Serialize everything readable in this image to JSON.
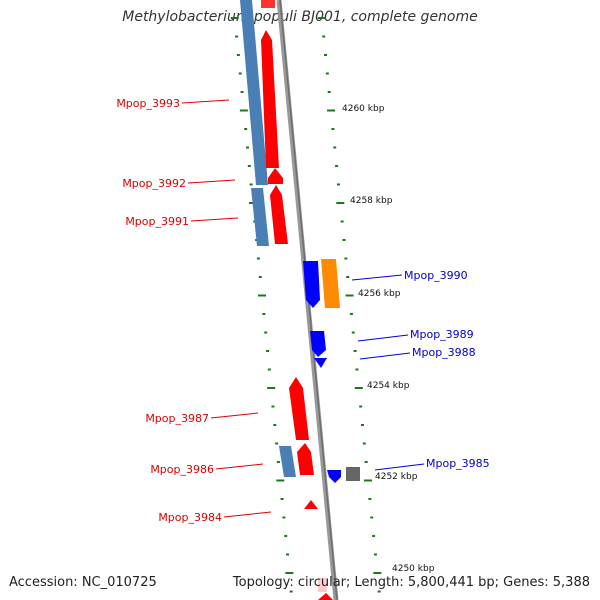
{
  "title": "Methylobacterium populi BJ001, complete genome",
  "footer": {
    "accession": "Accession: NC_010725",
    "summary": "Topology: circular; Length: 5,800,441 bp; Genes: 5,388"
  },
  "colors": {
    "forward_label": "#dd0000",
    "reverse_label": "#0000cc",
    "backbone": "#888888",
    "ticks": "#1a7a1a",
    "cds_forward": "#ff0000",
    "cds_reverse": "#0000ff",
    "steel": "#4a7fb5",
    "orange": "#ff8c00",
    "grey": "#666666"
  },
  "scale_labels": [
    "4260 kbp",
    "4258 kbp",
    "4256 kbp",
    "4254 kbp",
    "4252 kbp",
    "4250 kbp"
  ],
  "forward_genes": [
    "Mpop_3993",
    "Mpop_3992",
    "Mpop_3991",
    "Mpop_3987",
    "Mpop_3986",
    "Mpop_3984"
  ],
  "reverse_genes": [
    "Mpop_3990",
    "Mpop_3989",
    "Mpop_3988",
    "Mpop_3985"
  ]
}
